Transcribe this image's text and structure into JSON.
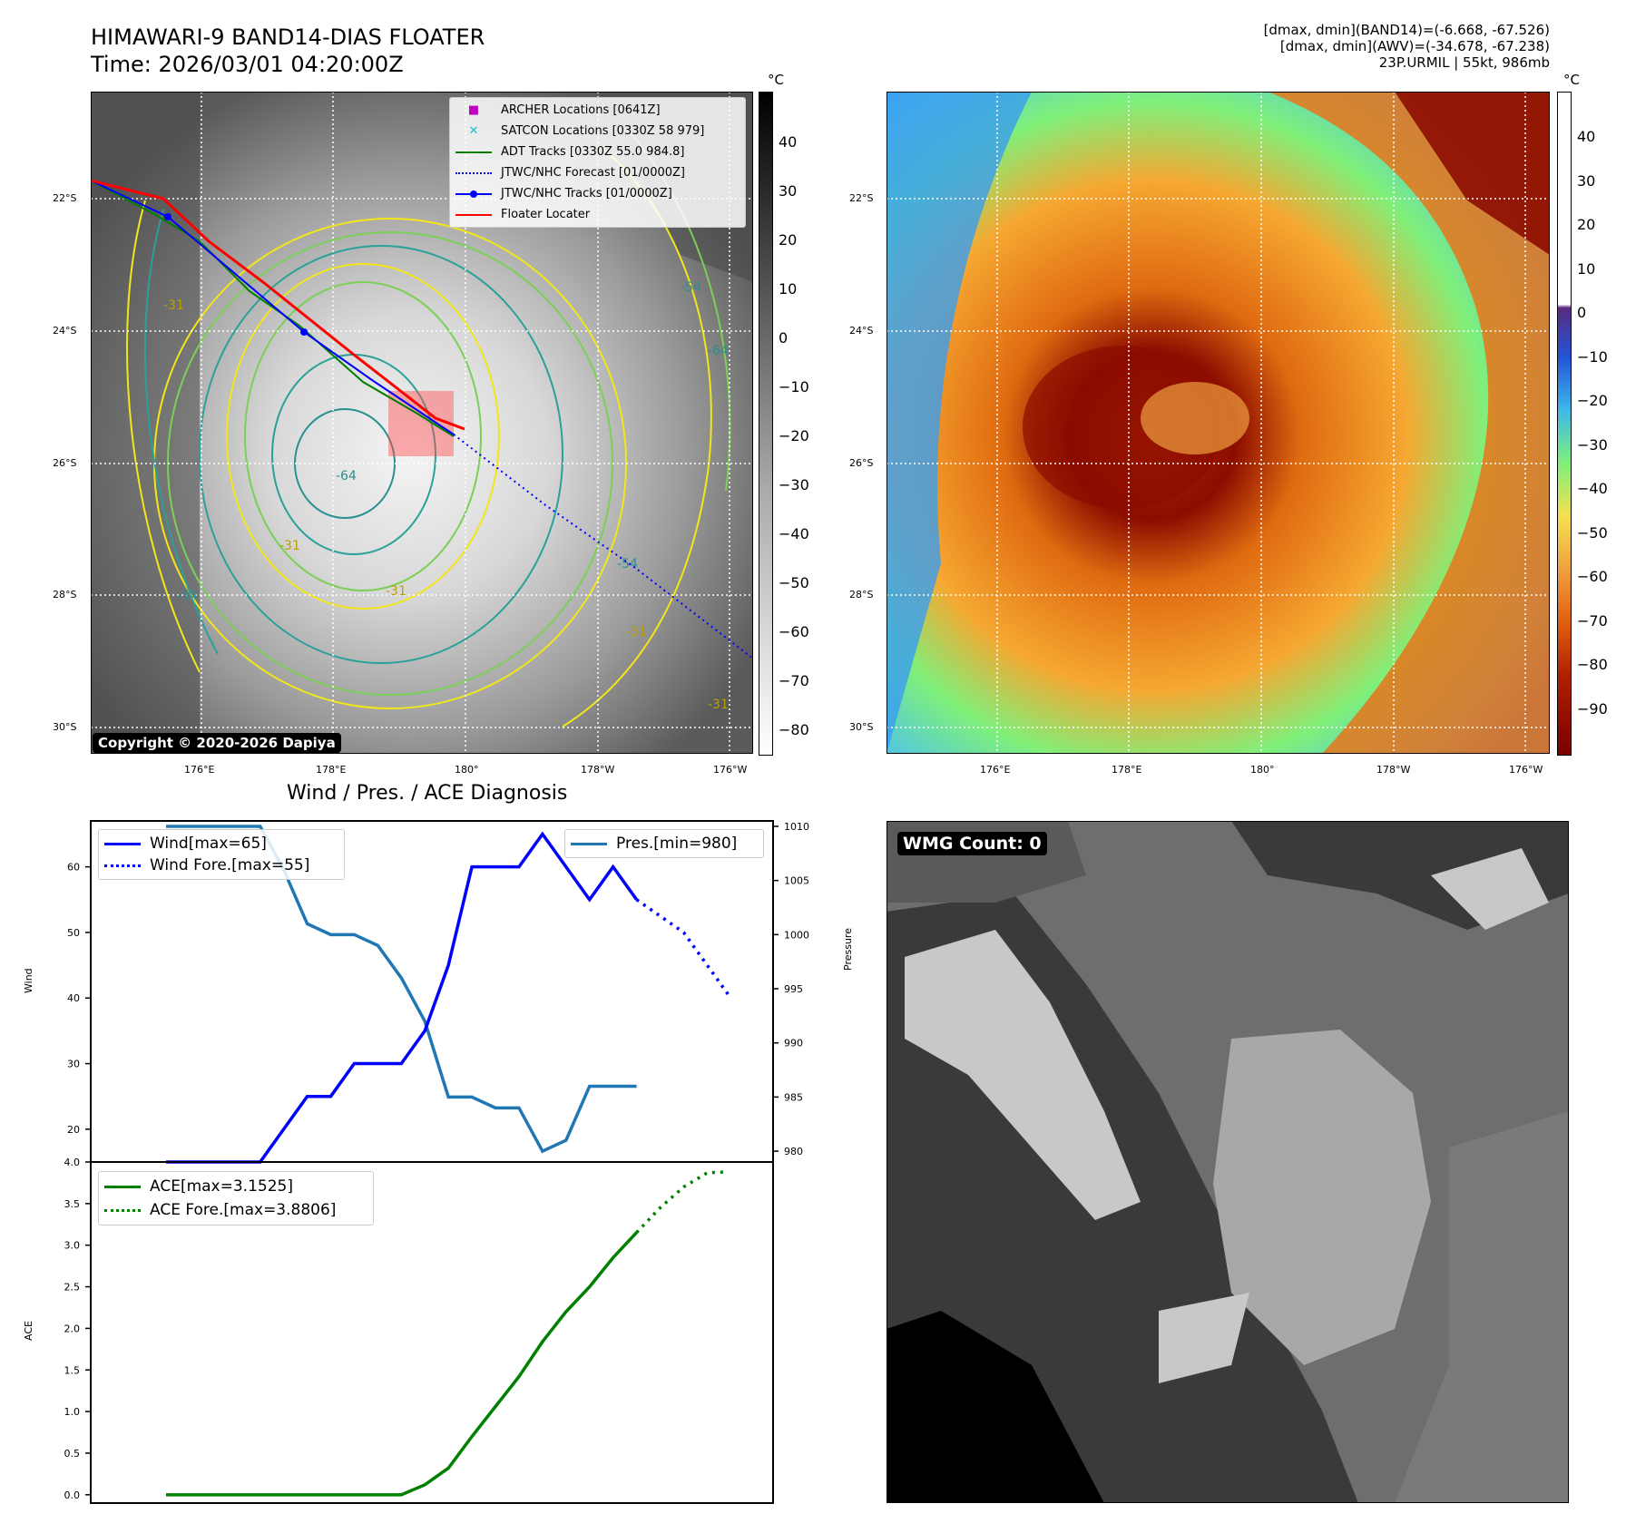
{
  "header": {
    "title_line1": "HIMAWARI-9 BAND14-DIAS FLOATER",
    "title_line2": "Time: 2026/03/01 04:20:00Z",
    "info_line1": "[dmax, dmin](BAND14)=(-6.668, -67.526)",
    "info_line2": "[dmax, dmin](AWV)=(-34.678, -67.238)",
    "info_line3": "23P.URMIL | 55kt, 986mb"
  },
  "map_left": {
    "lat_labels": [
      "22°S",
      "24°S",
      "26°S",
      "28°S",
      "30°S"
    ],
    "lon_labels": [
      "176°E",
      "178°E",
      "180°",
      "178°W",
      "176°W"
    ],
    "contour_labels": [
      "-31",
      "-54",
      "-64",
      "-64",
      "-31",
      "-31",
      "-54",
      "-54",
      "-31",
      "-31"
    ],
    "copyright": "Copyright © 2020-2026 Dapiya",
    "legend": [
      {
        "label": "ARCHER Locations [0641Z]",
        "color": "#c000c0",
        "symbol": "square"
      },
      {
        "label": "SATCON Locations [0330Z 58 979]",
        "color": "#17becf",
        "symbol": "x"
      },
      {
        "label": "ADT Tracks [0330Z 55.0 984.8]",
        "color": "#008000",
        "symbol": "line"
      },
      {
        "label": "JTWC/NHC Forecast [01/0000Z]",
        "color": "#0000ff",
        "symbol": "dotted"
      },
      {
        "label": "JTWC/NHC Tracks [01/0000Z]",
        "color": "#0000ff",
        "symbol": "line-dot"
      },
      {
        "label": "Floater Locater",
        "color": "#ff0000",
        "symbol": "line"
      }
    ],
    "colorbar": {
      "unit": "°C",
      "ticks": [
        "40",
        "30",
        "20",
        "10",
        "0",
        "−10",
        "−20",
        "−30",
        "−40",
        "−50",
        "−60",
        "−70",
        "−80"
      ]
    }
  },
  "map_right": {
    "lat_labels": [
      "22°S",
      "24°S",
      "26°S",
      "28°S",
      "30°S"
    ],
    "lon_labels": [
      "176°E",
      "178°E",
      "180°",
      "178°W",
      "176°W"
    ],
    "colorbar": {
      "unit": "°C",
      "ticks": [
        "40",
        "30",
        "20",
        "10",
        "0",
        "−10",
        "−20",
        "−30",
        "−40",
        "−50",
        "−60",
        "−70",
        "−80",
        "−90"
      ]
    }
  },
  "wmg": {
    "badge": "WMG Count: 0"
  },
  "chart_data": [
    {
      "type": "line",
      "title": "Wind / Pres. / ACE Diagnosis",
      "ylabel": "Wind",
      "ylabel_right": "Pressure",
      "ylim": [
        15,
        67
      ],
      "ylim_right": [
        979,
        1010.5
      ],
      "yticks": [
        20,
        30,
        40,
        50,
        60
      ],
      "yticks_right": [
        980,
        985,
        990,
        995,
        1000,
        1005,
        1010
      ],
      "x": [
        0,
        1,
        2,
        3,
        4,
        5,
        6,
        7,
        8,
        9,
        10,
        11,
        12,
        13,
        14,
        15,
        16,
        17,
        18,
        19,
        20
      ],
      "series": [
        {
          "name": "Wind[max=65]",
          "color": "#0000ff",
          "style": "solid",
          "axis": "left",
          "x": [
            0,
            1,
            2,
            3,
            4,
            5,
            6,
            7,
            8,
            9,
            10,
            11,
            12,
            13,
            14,
            15,
            16,
            17,
            18,
            19,
            20
          ],
          "values": [
            15,
            15,
            15,
            15,
            15,
            20,
            25,
            25,
            30,
            30,
            30,
            35,
            45,
            60,
            60,
            60,
            65,
            60,
            55,
            60,
            55
          ]
        },
        {
          "name": "Wind Fore.[max=55]",
          "color": "#0000ff",
          "style": "dotted",
          "axis": "left",
          "x": [
            20,
            21,
            22,
            23,
            24
          ],
          "values": [
            55,
            52.5,
            50,
            45,
            40
          ]
        },
        {
          "name": "Pres.[min=980]",
          "color": "#1f77b4",
          "style": "solid",
          "axis": "right",
          "x": [
            0,
            1,
            2,
            3,
            4,
            5,
            6,
            7,
            8,
            9,
            10,
            11,
            12,
            13,
            14,
            15,
            16,
            17,
            18,
            19,
            20
          ],
          "values": [
            1010,
            1010,
            1010,
            1010,
            1010,
            1006,
            1001,
            1000,
            1000,
            999,
            996,
            992,
            985,
            985,
            984,
            984,
            980,
            981,
            986,
            986,
            986
          ]
        }
      ]
    },
    {
      "type": "line",
      "ylabel": "ACE",
      "ylim": [
        -0.1,
        4.0
      ],
      "yticks": [
        0.0,
        0.5,
        1.0,
        1.5,
        2.0,
        2.5,
        3.0,
        3.5,
        4.0
      ],
      "series": [
        {
          "name": "ACE[max=3.1525]",
          "color": "#008000",
          "style": "solid",
          "x": [
            0,
            1,
            2,
            3,
            4,
            5,
            6,
            7,
            8,
            9,
            10,
            11,
            12,
            13,
            14,
            15,
            16,
            17,
            18,
            19,
            20
          ],
          "values": [
            0,
            0,
            0,
            0,
            0,
            0,
            0,
            0,
            0,
            0,
            0,
            0.12,
            0.32,
            0.7,
            1.06,
            1.42,
            1.84,
            2.2,
            2.5,
            2.85,
            3.1525
          ]
        },
        {
          "name": "ACE Fore.[max=3.8806]",
          "color": "#008000",
          "style": "dotted",
          "x": [
            20,
            21,
            22,
            23,
            23.8
          ],
          "values": [
            3.1525,
            3.45,
            3.7,
            3.87,
            3.8806
          ]
        }
      ]
    }
  ]
}
